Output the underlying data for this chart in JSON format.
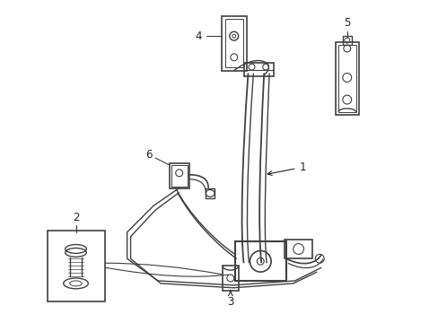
{
  "bg_color": "#ffffff",
  "line_color": "#404040",
  "label_color": "#222222",
  "label_fontsize": 8.5,
  "fig_width": 4.89,
  "fig_height": 3.6,
  "dpi": 100
}
